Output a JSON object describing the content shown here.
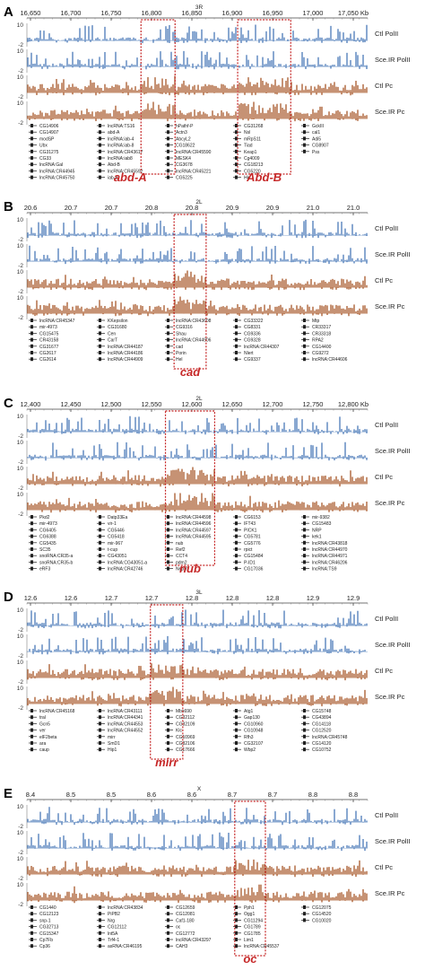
{
  "colors": {
    "polII": "#4a7ab8",
    "pc": "#a8582a",
    "highlight": "#c62828",
    "gene": "#222222"
  },
  "track_labels": [
    "Ctl PolII",
    "Sce.IR PolII",
    "Ctl Pc",
    "Sce.IR Pc"
  ],
  "chart_data": [
    {
      "type": "genome-track",
      "panel": "A",
      "chromosome": "3R",
      "unit": "Kb",
      "xlim": [
        16650,
        17080
      ],
      "ticks": [
        "16,650",
        "16,700",
        "16,750",
        "16,800",
        "16,850",
        "16,900",
        "16,950",
        "17,000",
        "17,050 Kb"
      ],
      "y_max": "10",
      "y_min": "-2",
      "highlights": [
        {
          "label": "abd-A",
          "from": 16794,
          "to": 16837
        },
        {
          "label": "Abd-B",
          "from": 16916,
          "to": 16983
        }
      ],
      "genes": [
        "CG14906",
        "CG14907",
        "modSP",
        "Ubx",
        "CG31275",
        "CG33",
        "lncRNA:Gal",
        "lncRNA:CR44945",
        "lncRNA:CR45750",
        "lncRNA:TS16",
        "abd-A",
        "lncRNA:iab-4",
        "lncRNA:iab-8",
        "lncRNA:CR43617",
        "lncRNA:iab8",
        "Abd-B",
        "lncRNA:CR45592",
        "iab-8",
        "hPathf-P",
        "Actn3",
        "AbcyL2",
        "CG18622",
        "lncRNA:CR45590",
        "MESK4",
        "CG3678",
        "lncRNA:CR45221",
        "CG5225",
        "CG31268",
        "Nsl",
        "mRpS11",
        "Tiad",
        "Keap1",
        "Cg4009",
        "CG18213",
        "CG5220",
        "Hk",
        "GckIII",
        "cal1",
        "Adi5",
        "CG8907",
        "Pss"
      ]
    },
    {
      "type": "genome-track",
      "panel": "B",
      "chromosome": "2L",
      "unit": "Mbp",
      "xlim": [
        20.55,
        21.05
      ],
      "ticks": [
        "20.6",
        "20.7",
        "20.7",
        "20.8",
        "20.8",
        "20.9",
        "20.9",
        "21.0",
        "21.0"
      ],
      "y_max": "10",
      "y_min": "-2",
      "highlights": [
        {
          "label": "cad",
          "from": 20.766,
          "to": 20.813
        }
      ],
      "genes": [
        "lncRNA:CR45347",
        "mir-4973",
        "CG15475",
        "CR43158",
        "CG31677",
        "CG2617",
        "CG2614",
        "KKepsilon",
        "CG31680",
        "Cen",
        "CarT",
        "lncRNA:CR44187",
        "lncRNA:CR44186",
        "lncRNA:CR44909",
        "lncRNA:CR43608",
        "CG9316",
        "Shau",
        "lncRNA:CR44906",
        "cad",
        "Porin",
        "Hel",
        "CG33322",
        "CG8331",
        "CG9336",
        "CG9328",
        "lncRNA:CR44307",
        "Nlert",
        "CG9337",
        "Mtp",
        "CR33317",
        "CR33318",
        "RPA2",
        "CG14400",
        "CG9272",
        "lncRNA:CR44606"
      ]
    },
    {
      "type": "genome-track",
      "panel": "C",
      "chromosome": "2L",
      "unit": "Kb",
      "xlim": [
        12400,
        12850
      ],
      "ticks": [
        "12,400",
        "12,450",
        "12,500",
        "12,550",
        "12,600",
        "12,650",
        "12,700",
        "12,750",
        "12,800 Kb"
      ],
      "y_max": "10",
      "y_min": "-2",
      "highlights": [
        {
          "label": "nub",
          "from": 12583,
          "to": 12648
        }
      ],
      "genes": [
        "Pkd2",
        "mir-4973",
        "CG6405",
        "CG6388",
        "CG5435",
        "SC35",
        "snoRNA:CR35-a",
        "snoRNA:CR35-b",
        "eRF3",
        "Datp33Ea",
        "vir-1",
        "CG5446",
        "CG5418",
        "mir-967",
        "t-cup",
        "CG43051",
        "lncRNA:CG43051-a",
        "lncRNA:CR42746",
        "lncRNA:CR44598",
        "lncRNA:CR44596",
        "lncRNA:CR44597",
        "lncRNA:CR44595",
        "nub",
        "Ref2",
        "CCT4",
        "pdm2",
        "Nepl7",
        "CG6153",
        "IFT43",
        "PICK1",
        "CG5781",
        "CG5776",
        "rpict",
        "CG15484",
        "P-ID1",
        "CG17036",
        "mir-9382",
        "CG15483",
        "NRP",
        "kek1",
        "lncRNA:CR43818",
        "lncRNA:CR44970",
        "lncRNA:CR44971",
        "lncRNA:CR46206",
        "lncRNA:TS9"
      ]
    },
    {
      "type": "genome-track",
      "panel": "D",
      "chromosome": "3L",
      "unit": "Mbp",
      "xlim": [
        12.55,
        12.95
      ],
      "ticks": [
        "12.6",
        "12.6",
        "12.7",
        "12.7",
        "12.8",
        "12.8",
        "12.8",
        "12.9",
        "12.9"
      ],
      "y_max": "10",
      "y_min": "-2",
      "highlights": [
        {
          "label": "mirr",
          "from": 12.695,
          "to": 12.733
        }
      ],
      "genes": [
        "lncRNA:CR45168",
        "tral",
        "Gcn5",
        "ver",
        "elF2beta",
        "ara",
        "caup",
        "lncRNA:CR43111",
        "lncRNA:CR44341",
        "lncRNA:CR44553",
        "lncRNA:CR44552",
        "mirr",
        "SmD1",
        "Hip1",
        "Mbs690",
        "CG32112",
        "CG32109",
        "Klc",
        "CG10969",
        "CG32106",
        "CG17666",
        "Atg1",
        "Gap130",
        "CG10960",
        "CG10948",
        "Rfh3",
        "CG32107",
        "Wbp2",
        "CG15748",
        "CG43894",
        "CG14118",
        "CG12520",
        "lncRNA:CR45748",
        "CG14120",
        "CG10752"
      ]
    },
    {
      "type": "genome-track",
      "panel": "E",
      "chromosome": "X",
      "unit": "Mbp",
      "xlim": [
        8.35,
        8.85
      ],
      "ticks": [
        "8.4",
        "8.5",
        "8.5",
        "8.6",
        "8.6",
        "8.7",
        "8.7",
        "8.8",
        "8.8"
      ],
      "y_max": "10",
      "y_min": "-2",
      "highlights": [
        {
          "label": "oc",
          "from": 8.655,
          "to": 8.7
        }
      ],
      "genes": [
        "CG1440",
        "CG12123",
        "snp-1",
        "CG32713",
        "CG15347",
        "Cp7Fb",
        "Cp36",
        "lncRNA:CR43834",
        "PiPB2",
        "Nrg",
        "CG12112",
        "lnt5A",
        "Trf4-1",
        "asRNA:CR46195",
        "CG12659",
        "CG12081",
        "Caf1-180",
        "oc",
        "CG12772",
        "lncRNA:CR43297",
        "CAH3",
        "Pph1",
        "Ogg1",
        "CG11294",
        "CG1789",
        "CG1785",
        "Lim1",
        "lncRNA:CR45537",
        "CG12075",
        "CG14520",
        "CG10020"
      ]
    }
  ]
}
